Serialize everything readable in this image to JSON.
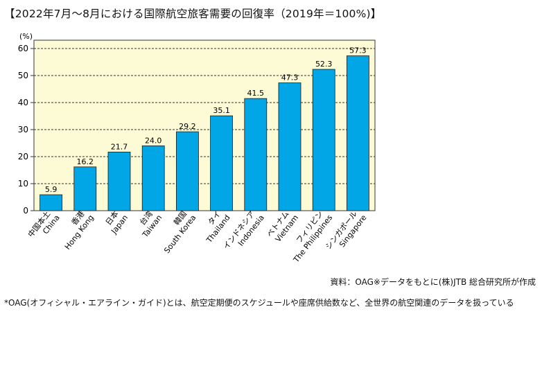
{
  "title": "【2022年7月〜8月における国際航空旅客需要の回復率（2019年＝100%)】",
  "source": "資料：OAG※データをもとに(株)JTB 総合研究所が作成",
  "note": "*OAG(オフィシャル・エアライン・ガイド)とは、航空定期便のスケジュールや座席供給数など、全世界の航空関連のデータを扱っている",
  "colors": {
    "bar": "#00a6e6",
    "plot_bg": "#fdfbd5",
    "grid": "#333333"
  },
  "chart_data": {
    "type": "bar",
    "y_unit": "(%)",
    "ylim": [
      0,
      60
    ],
    "yticks": [
      0,
      10,
      20,
      30,
      40,
      50,
      60
    ],
    "grid": true,
    "categories": [
      {
        "ja": "中国本土",
        "en": "China"
      },
      {
        "ja": "香港",
        "en": "Hong Kong"
      },
      {
        "ja": "日本",
        "en": "Japan"
      },
      {
        "ja": "台湾",
        "en": "Taiwan"
      },
      {
        "ja": "韓国",
        "en": "South Korea"
      },
      {
        "ja": "タイ",
        "en": "Thailand"
      },
      {
        "ja": "インドネシア",
        "en": "Indonesia"
      },
      {
        "ja": "ベトナム",
        "en": "Vietnam"
      },
      {
        "ja": "フィリピン",
        "en": "The Philippines"
      },
      {
        "ja": "シンガポール",
        "en": "Singapore"
      }
    ],
    "values": [
      5.9,
      16.2,
      21.7,
      24.0,
      29.2,
      35.1,
      41.5,
      47.3,
      52.3,
      57.3
    ],
    "value_labels": [
      "5.9",
      "16.2",
      "21.7",
      "24.0",
      "29.2",
      "35.1",
      "41.5",
      "47.3",
      "52.3",
      "57.3"
    ]
  }
}
